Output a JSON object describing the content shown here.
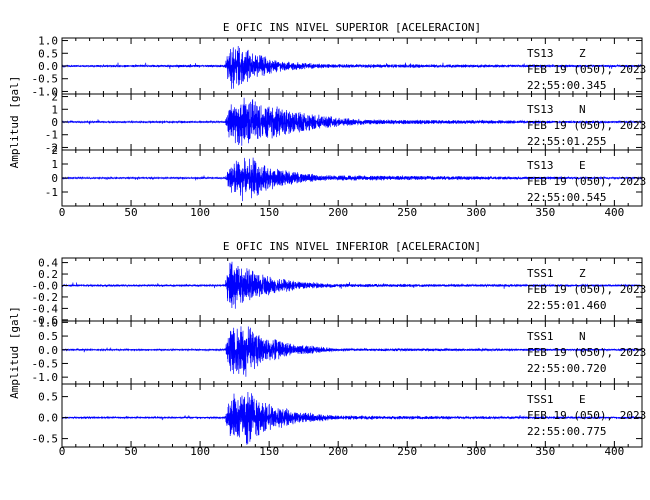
{
  "chart_data": [
    {
      "type": "line",
      "title": "E OFIC INS NIVEL SUPERIOR [ACELERACION]",
      "ylabel": "Amplitud [gal]",
      "xlabel": "",
      "xlim": [
        0,
        420
      ],
      "xticks": [
        0,
        50,
        100,
        150,
        200,
        250,
        300,
        350,
        400
      ],
      "xticks_minor_step": 10,
      "color": "#0000ff",
      "series": [
        {
          "station": "TS13",
          "component": "Z",
          "date": "FEB 19 (050), 2023",
          "time": "22:55:00.345",
          "ylim": [
            -1.1,
            1.1
          ],
          "yticks": [
            -1.0,
            -0.5,
            0.0,
            0.5,
            1.0
          ],
          "ytick_labels": [
            "-1.0",
            "-0.5",
            "0.0",
            "0.5",
            "1.0"
          ],
          "noise": 0.05,
          "envelope": [
            [
              0,
              0.04
            ],
            [
              118,
              0.05
            ],
            [
              121,
              1.0
            ],
            [
              128,
              0.9
            ],
            [
              140,
              0.5
            ],
            [
              160,
              0.2
            ],
            [
              190,
              0.08
            ],
            [
              420,
              0.04
            ]
          ],
          "freq": 0.6
        },
        {
          "station": "TS13",
          "component": "N",
          "date": "FEB 19 (050), 2023",
          "time": "22:55:01.255",
          "ylim": [
            -2.2,
            2.2
          ],
          "yticks": [
            -2,
            -1,
            0,
            1,
            2
          ],
          "ytick_labels": [
            "-2",
            "-1",
            "0",
            "1",
            "2"
          ],
          "noise": 0.07,
          "envelope": [
            [
              0,
              0.06
            ],
            [
              118,
              0.07
            ],
            [
              122,
              1.7
            ],
            [
              135,
              2.0
            ],
            [
              145,
              1.5
            ],
            [
              165,
              1.0
            ],
            [
              190,
              0.5
            ],
            [
              220,
              0.2
            ],
            [
              420,
              0.06
            ]
          ],
          "freq": 0.45
        },
        {
          "station": "TS13",
          "component": "E",
          "date": "FEB 19 (050), 2023",
          "time": "22:55:00.545",
          "ylim": [
            -2.0,
            2.0
          ],
          "yticks": [
            -1,
            0,
            1,
            2
          ],
          "ytick_labels": [
            "-1",
            "0",
            "1",
            "2"
          ],
          "noise": 0.06,
          "envelope": [
            [
              0,
              0.05
            ],
            [
              118,
              0.06
            ],
            [
              122,
              1.2
            ],
            [
              134,
              1.9
            ],
            [
              145,
              1.0
            ],
            [
              165,
              0.5
            ],
            [
              190,
              0.2
            ],
            [
              420,
              0.05
            ]
          ],
          "freq": 0.5
        }
      ]
    },
    {
      "type": "line",
      "title": "E OFIC INS NIVEL INFERIOR [ACELERACION]",
      "ylabel": "Amplitud [gal]",
      "xlabel": "",
      "xlim": [
        0,
        420
      ],
      "xticks": [
        0,
        50,
        100,
        150,
        200,
        250,
        300,
        350,
        400
      ],
      "xticks_minor_step": 10,
      "color": "#0000ff",
      "series": [
        {
          "station": "TSS1",
          "component": "Z",
          "date": "FEB 19 (050), 2023",
          "time": "22:55:01.460",
          "ylim": [
            -0.62,
            0.48
          ],
          "yticks": [
            -0.6,
            -0.4,
            -0.2,
            0.0,
            0.2,
            0.4
          ],
          "ytick_labels": [
            "-0.6",
            "-0.4",
            "-0.2",
            "-0.0",
            "0.2",
            "0.4"
          ],
          "noise": 0.02,
          "envelope": [
            [
              0,
              0.015
            ],
            [
              118,
              0.02
            ],
            [
              121,
              0.44
            ],
            [
              130,
              0.4
            ],
            [
              145,
              0.2
            ],
            [
              170,
              0.08
            ],
            [
              200,
              0.03
            ],
            [
              420,
              0.015
            ]
          ],
          "freq": 0.6
        },
        {
          "station": "TSS1",
          "component": "N",
          "date": "FEB 19 (050), 2023",
          "time": "22:55:00.720",
          "ylim": [
            -1.25,
            1.05
          ],
          "yticks": [
            -1.0,
            -0.5,
            0.0,
            0.5,
            1.0
          ],
          "ytick_labels": [
            "-1.0",
            "-0.5",
            "0.0",
            "0.5",
            "1.0"
          ],
          "noise": 0.03,
          "envelope": [
            [
              0,
              0.025
            ],
            [
              118,
              0.03
            ],
            [
              122,
              0.9
            ],
            [
              131,
              1.1
            ],
            [
              145,
              0.5
            ],
            [
              170,
              0.2
            ],
            [
              200,
              0.06
            ],
            [
              420,
              0.025
            ]
          ],
          "freq": 0.55
        },
        {
          "station": "TSS1",
          "component": "E",
          "date": "FEB 19 (050), 2023",
          "time": "22:55:00.775",
          "ylim": [
            -0.7,
            0.8
          ],
          "yticks": [
            -0.5,
            0.0,
            0.5
          ],
          "ytick_labels": [
            "-0.5",
            "0.0",
            "0.5"
          ],
          "noise": 0.02,
          "envelope": [
            [
              0,
              0.015
            ],
            [
              118,
              0.02
            ],
            [
              122,
              0.55
            ],
            [
              133,
              0.7
            ],
            [
              145,
              0.4
            ],
            [
              170,
              0.15
            ],
            [
              200,
              0.05
            ],
            [
              420,
              0.015
            ]
          ],
          "freq": 0.55
        }
      ]
    }
  ]
}
